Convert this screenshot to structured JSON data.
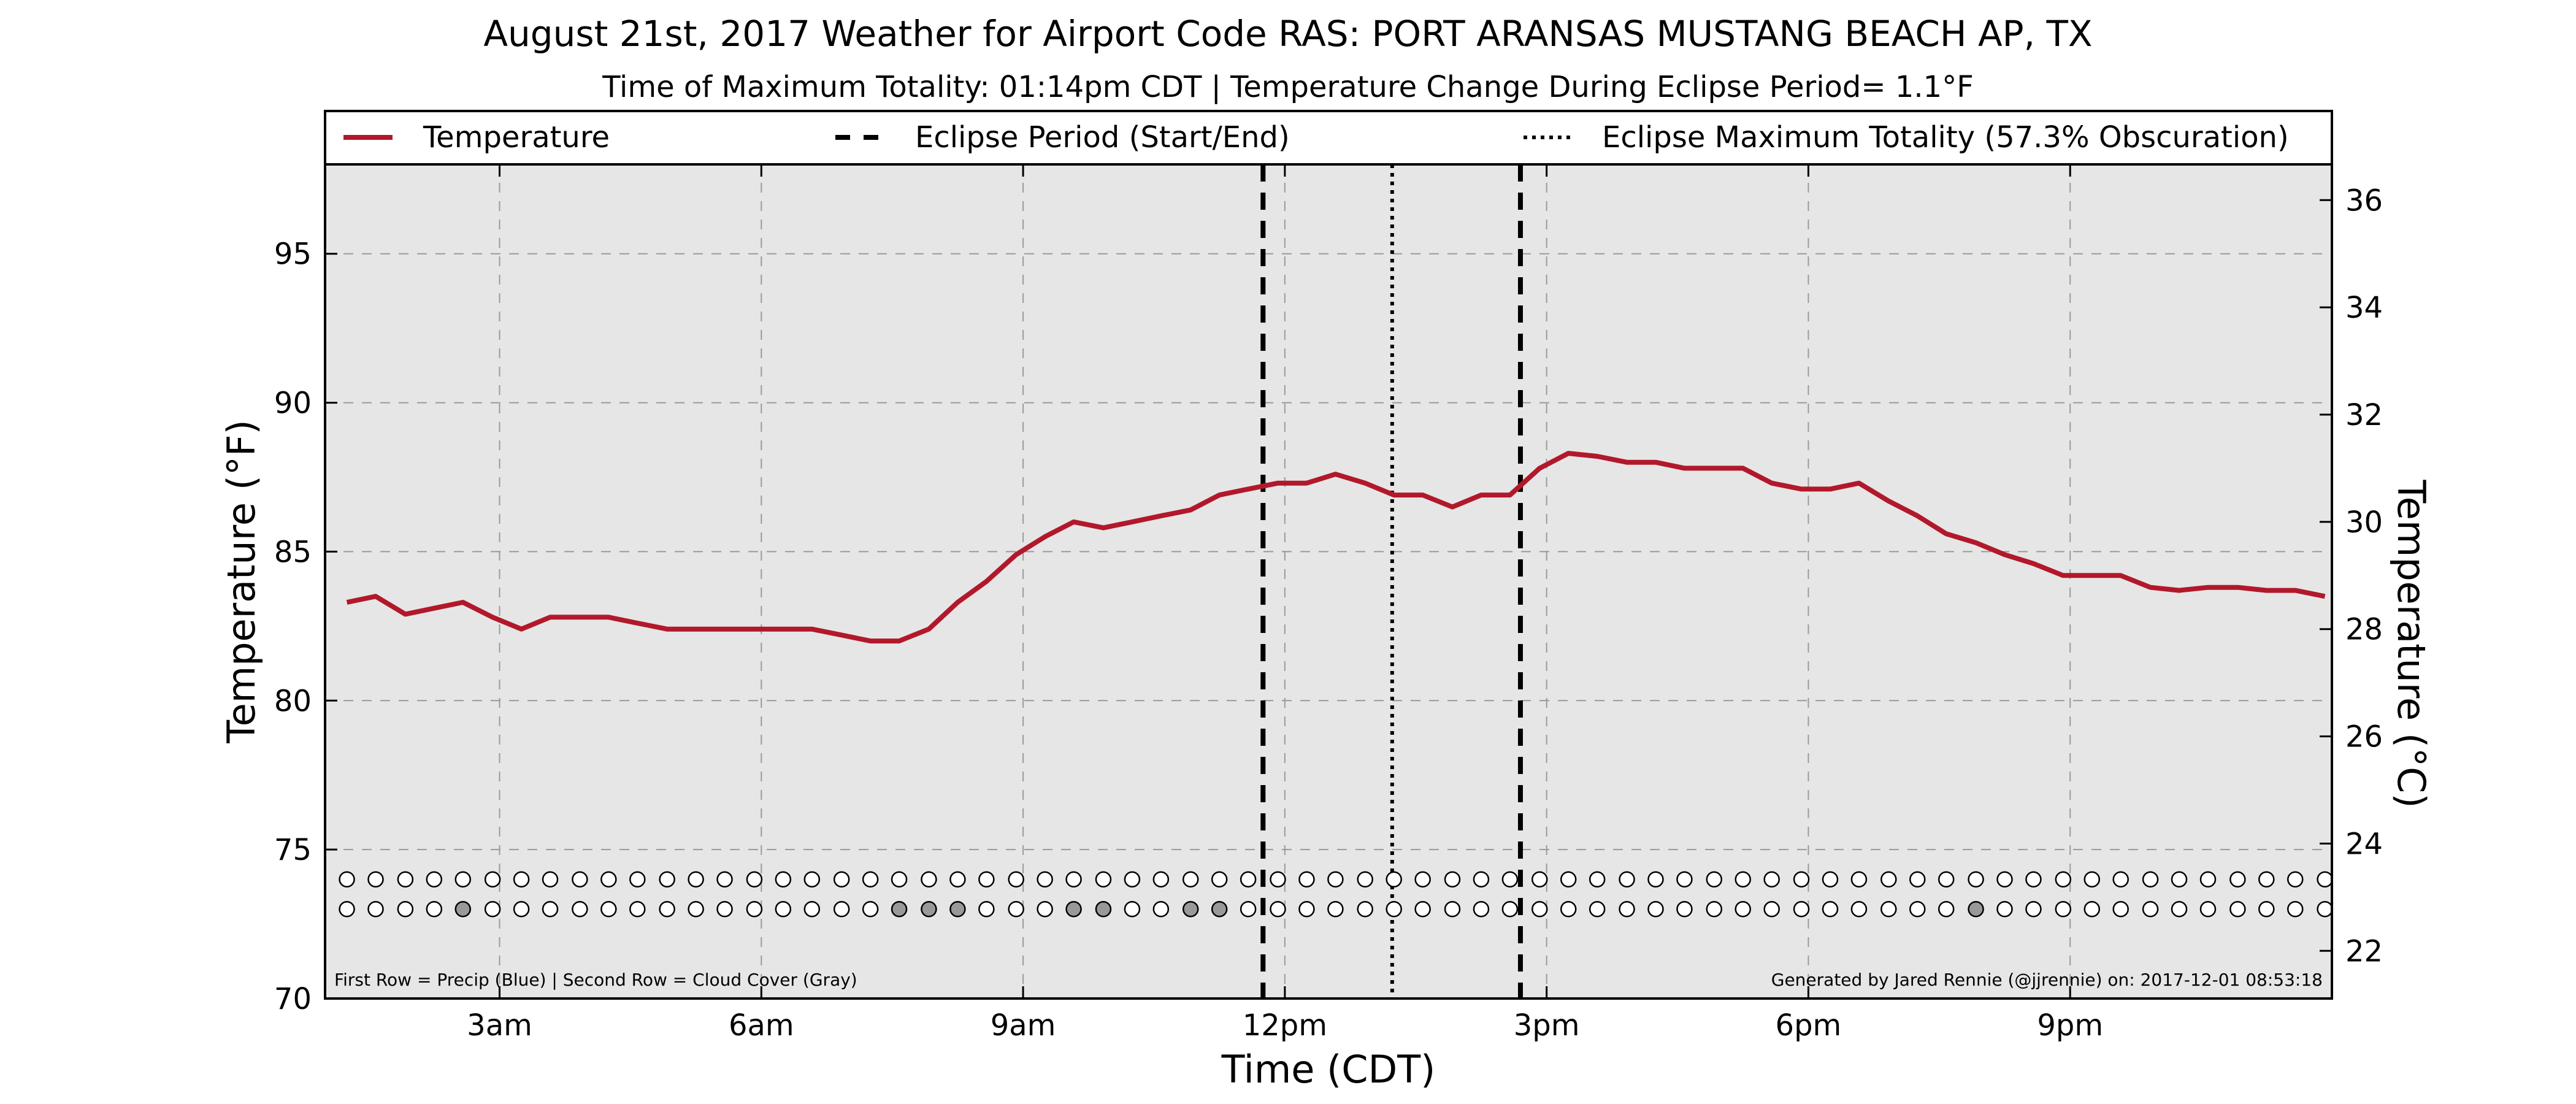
{
  "chart_data": {
    "type": "line",
    "title": "August 21st, 2017 Weather for Airport Code RAS: PORT ARANSAS MUSTANG BEACH AP, TX",
    "subtitle": "Time of Maximum Totality: 01:14pm CDT | Temperature Change During Eclipse Period= 1.1°F",
    "xlabel": "Time (CDT)",
    "ylabel": "Temperature (°F)",
    "ylabel_right": "Temperature (°C)",
    "x_unit": "hours after midnight CDT",
    "xlim": [
      1.0,
      24.0
    ],
    "ylim": [
      70,
      98
    ],
    "ylim_right_celsius": [
      21.11,
      36.67
    ],
    "x_ticks": [
      {
        "x": 3,
        "label": "3am"
      },
      {
        "x": 6,
        "label": "6am"
      },
      {
        "x": 9,
        "label": "9am"
      },
      {
        "x": 12,
        "label": "12pm"
      },
      {
        "x": 15,
        "label": "3pm"
      },
      {
        "x": 18,
        "label": "6pm"
      },
      {
        "x": 21,
        "label": "9pm"
      }
    ],
    "y_ticks": [
      "70",
      "75",
      "80",
      "85",
      "90",
      "95"
    ],
    "y_ticks_right": [
      "22",
      "24",
      "26",
      "28",
      "30",
      "32",
      "34",
      "36"
    ],
    "grid": true,
    "legend_placement": "top, full-width row above plot",
    "legend": [
      {
        "label": "Temperature",
        "style": "solid"
      },
      {
        "label": "Eclipse Period (Start/End)",
        "style": "dashed"
      },
      {
        "label": "Eclipse Maximum Totality (57.3% Obscuration)",
        "style": "dotted"
      }
    ],
    "series": [
      {
        "name": "Temperature",
        "color": "#b2182b",
        "x": [
          1.25,
          1.58,
          1.92,
          2.25,
          2.58,
          2.92,
          3.25,
          3.58,
          3.92,
          4.25,
          4.58,
          4.92,
          5.25,
          5.58,
          5.92,
          6.25,
          6.58,
          6.92,
          7.25,
          7.58,
          7.92,
          8.25,
          8.58,
          8.92,
          9.25,
          9.58,
          9.92,
          10.25,
          10.58,
          10.92,
          11.25,
          11.58,
          11.92,
          12.25,
          12.58,
          12.92,
          13.25,
          13.58,
          13.92,
          14.25,
          14.58,
          14.92,
          15.25,
          15.58,
          15.92,
          16.25,
          16.58,
          16.92,
          17.25,
          17.58,
          17.92,
          18.25,
          18.58,
          18.92,
          19.25,
          19.58,
          19.92,
          20.25,
          20.58,
          20.92,
          21.25,
          21.58,
          21.92,
          22.25,
          22.58,
          22.92,
          23.25,
          23.58,
          23.92
        ],
        "values": [
          83.3,
          83.5,
          82.9,
          83.1,
          83.3,
          82.8,
          82.4,
          82.8,
          82.8,
          82.8,
          82.6,
          82.4,
          82.4,
          82.4,
          82.4,
          82.4,
          82.4,
          82.2,
          82.0,
          82.0,
          82.4,
          83.3,
          84.0,
          84.9,
          85.5,
          86.0,
          85.8,
          86.0,
          86.2,
          86.4,
          86.9,
          87.1,
          87.3,
          87.3,
          87.6,
          87.3,
          86.9,
          86.9,
          86.5,
          86.9,
          86.9,
          87.8,
          88.3,
          88.2,
          88.0,
          88.0,
          87.8,
          87.8,
          87.8,
          87.3,
          87.1,
          87.1,
          87.3,
          86.7,
          86.2,
          85.6,
          85.3,
          84.9,
          84.6,
          84.2,
          84.2,
          84.2,
          83.8,
          83.7,
          83.8,
          83.8,
          83.7,
          83.7,
          83.5
        ]
      }
    ],
    "eclipse": {
      "start": 11.75,
      "end": 14.7,
      "max_totality": 13.23
    },
    "indicator_rows": {
      "x": [
        1.25,
        1.58,
        1.92,
        2.25,
        2.58,
        2.92,
        3.25,
        3.58,
        3.92,
        4.25,
        4.58,
        4.92,
        5.25,
        5.58,
        5.92,
        6.25,
        6.58,
        6.92,
        7.25,
        7.58,
        7.92,
        8.25,
        8.58,
        8.92,
        9.25,
        9.58,
        9.92,
        10.25,
        10.58,
        10.92,
        11.25,
        11.58,
        11.92,
        12.25,
        12.58,
        12.92,
        13.25,
        13.58,
        13.92,
        14.25,
        14.58,
        14.92,
        15.25,
        15.58,
        15.92,
        16.25,
        16.58,
        16.92,
        17.25,
        17.58,
        17.92,
        18.25,
        18.58,
        18.92,
        19.25,
        19.58,
        19.92,
        20.25,
        20.58,
        20.92,
        21.25,
        21.58,
        21.92,
        22.25,
        22.58,
        22.92,
        23.25,
        23.58,
        23.92
      ],
      "precip_y": 74.0,
      "cloud_y": 73.0,
      "precip_gray_at": [],
      "cloud_gray_at": [
        2.58,
        7.58,
        7.92,
        8.25,
        9.58,
        9.92,
        10.92,
        11.25,
        19.92
      ],
      "empty_color": "#ffffff",
      "filled_color": "#999999"
    },
    "annotations": {
      "footer_left": "First Row = Precip (Blue) | Second Row = Cloud Cover (Gray)",
      "footer_right": "Generated by Jared Rennie (@jjrennie) on: 2017-12-01 08:53:18"
    },
    "colors": {
      "plot_background": "#e6e6e6",
      "temperature_line": "#b2182b",
      "grid": "#9a9a9a"
    }
  }
}
